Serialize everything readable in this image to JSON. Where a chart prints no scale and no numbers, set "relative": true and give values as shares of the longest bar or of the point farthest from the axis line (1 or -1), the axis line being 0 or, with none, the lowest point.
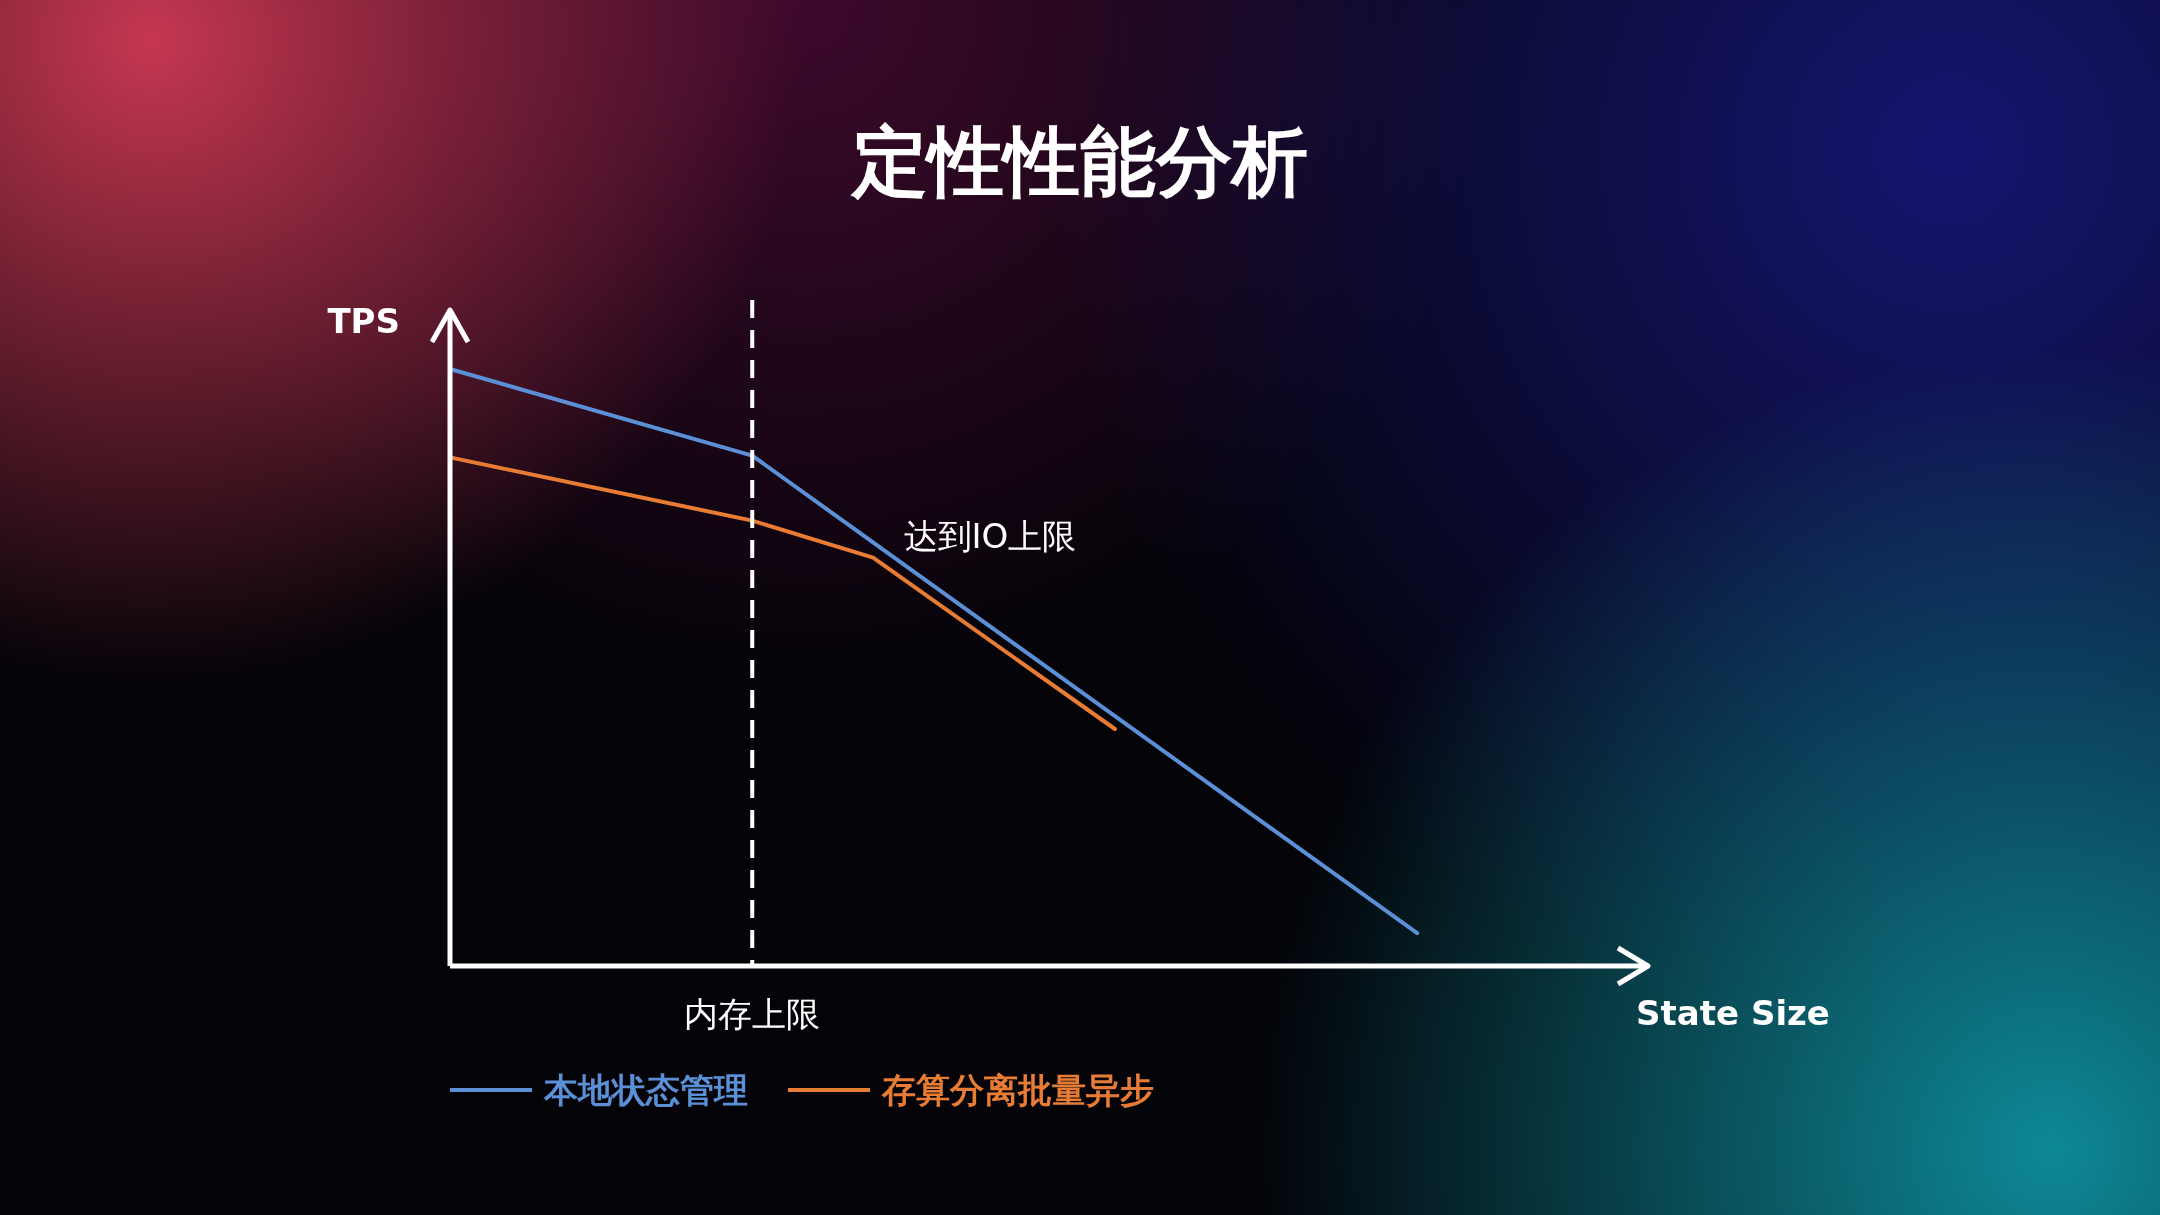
{
  "chart_data": {
    "type": "line",
    "title": "定性性能分析",
    "xlabel": "State Size",
    "ylabel": "TPS",
    "relative": true,
    "legend": "bottom",
    "line_style": "solid",
    "categories": [
      null,
      null,
      null,
      null,
      null,
      null,
      null,
      null,
      null,
      null,
      null,
      null,
      null,
      null,
      null,
      null,
      null,
      null,
      null,
      null
    ],
    "series": [
      {
        "name": "本地状态管理",
        "color": "#5b8fd6",
        "values": [
          1,
          null,
          null,
          null,
          null,
          0.855,
          null,
          null,
          null,
          null,
          null,
          null,
          null,
          null,
          null,
          null,
          0.055,
          null,
          null,
          null
        ]
      },
      {
        "name": "存算分离批量异步",
        "color": "#e87c35",
        "values": [
          0.852,
          null,
          null,
          null,
          null,
          0.746,
          null,
          0.684,
          null,
          null,
          null,
          0.397,
          null,
          null,
          null,
          null,
          null,
          null,
          null,
          null
        ]
      }
    ],
    "annotations": [
      "达到IO上限",
      "内存上限"
    ]
  }
}
